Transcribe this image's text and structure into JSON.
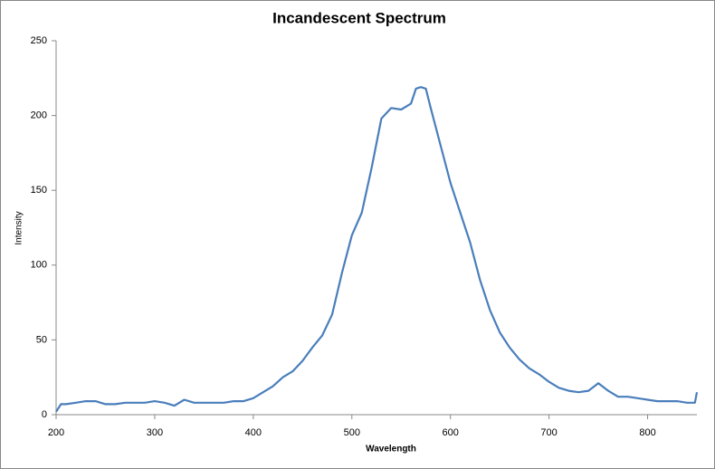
{
  "chart_data": {
    "type": "line",
    "title": "Incandescent Spectrum",
    "x_label": "Wavelength",
    "y_label": "Intensity",
    "series": [
      {
        "name": "Intensity",
        "color": "#4a7ebb",
        "x": [
          200,
          205,
          210,
          220,
          230,
          240,
          250,
          260,
          270,
          280,
          290,
          300,
          310,
          320,
          330,
          340,
          350,
          360,
          370,
          380,
          390,
          400,
          410,
          420,
          430,
          440,
          450,
          460,
          470,
          480,
          490,
          500,
          510,
          520,
          530,
          540,
          550,
          560,
          565,
          570,
          575,
          580,
          590,
          600,
          610,
          620,
          630,
          640,
          650,
          660,
          670,
          680,
          690,
          700,
          710,
          720,
          730,
          740,
          750,
          760,
          770,
          780,
          790,
          800,
          810,
          820,
          830,
          840,
          848,
          850
        ],
        "values": [
          2,
          7,
          7,
          8,
          9,
          9,
          7,
          7,
          8,
          8,
          8,
          9,
          8,
          6,
          10,
          8,
          8,
          8,
          8,
          9,
          9,
          11,
          15,
          19,
          25,
          29,
          36,
          45,
          53,
          67,
          95,
          120,
          135,
          165,
          198,
          205,
          204,
          208,
          218,
          219,
          218,
          205,
          180,
          155,
          135,
          115,
          90,
          70,
          55,
          45,
          37,
          31,
          27,
          22,
          18,
          16,
          15,
          16,
          21,
          16,
          12,
          12,
          11,
          10,
          9,
          9,
          9,
          8,
          8,
          15
        ]
      }
    ],
    "xlim": [
      200,
      850
    ],
    "xticks": [
      200,
      300,
      400,
      500,
      600,
      700,
      800
    ],
    "ylim": [
      0,
      250
    ],
    "yticks": [
      0,
      50,
      100,
      150,
      200,
      250
    ],
    "grid": false
  }
}
